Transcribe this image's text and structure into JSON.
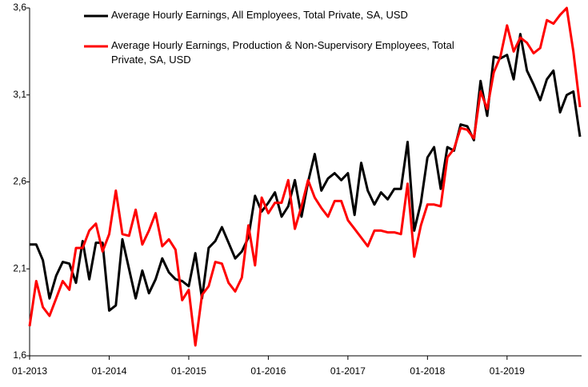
{
  "chart_data": {
    "type": "line",
    "categories": [
      "01-2013",
      null,
      null,
      null,
      null,
      null,
      null,
      null,
      null,
      null,
      null,
      null,
      "01-2014",
      null,
      null,
      null,
      null,
      null,
      null,
      null,
      null,
      null,
      null,
      null,
      "01-2015",
      null,
      null,
      null,
      null,
      null,
      null,
      null,
      null,
      null,
      null,
      null,
      "01-2016",
      null,
      null,
      null,
      null,
      null,
      null,
      null,
      null,
      null,
      null,
      null,
      "01-2017",
      null,
      null,
      null,
      null,
      null,
      null,
      null,
      null,
      null,
      null,
      null,
      "01-2018",
      null,
      null,
      null,
      null,
      null,
      null,
      null,
      null,
      null,
      null,
      null,
      "01-2019",
      null,
      null,
      null,
      null,
      null,
      null,
      null,
      null,
      null,
      null,
      null
    ],
    "series": [
      {
        "name": "Average Hourly Earnings, All Employees, Total Private, SA, USD",
        "color": "#000000",
        "values": [
          2.24,
          2.24,
          2.15,
          1.93,
          2.06,
          2.14,
          2.13,
          2.02,
          2.26,
          2.04,
          2.25,
          2.25,
          1.86,
          1.89,
          2.27,
          2.1,
          1.93,
          2.09,
          1.96,
          2.04,
          2.16,
          2.08,
          2.04,
          2.03,
          2.0,
          2.19,
          1.93,
          2.22,
          2.26,
          2.34,
          2.25,
          2.16,
          2.2,
          2.28,
          2.52,
          2.43,
          2.48,
          2.54,
          2.4,
          2.46,
          2.61,
          2.4,
          2.6,
          2.76,
          2.55,
          2.62,
          2.65,
          2.61,
          2.65,
          2.41,
          2.71,
          2.55,
          2.47,
          2.54,
          2.5,
          2.56,
          2.56,
          2.83,
          2.32,
          2.48,
          2.74,
          2.8,
          2.56,
          2.8,
          2.78,
          2.93,
          2.92,
          2.84,
          3.18,
          2.98,
          3.32,
          3.31,
          3.33,
          3.19,
          3.45,
          3.24,
          3.16,
          3.07,
          3.19,
          3.24,
          3.0,
          3.1,
          3.12,
          2.86
        ]
      },
      {
        "name": "Average Hourly Earnings, Production & Non-Supervisory Employees, Total Private, SA, USD",
        "color": "#ff0000",
        "values": [
          1.77,
          2.03,
          1.88,
          1.83,
          1.93,
          2.03,
          1.98,
          2.22,
          2.22,
          2.32,
          2.36,
          2.2,
          2.3,
          2.55,
          2.3,
          2.29,
          2.44,
          2.24,
          2.32,
          2.42,
          2.23,
          2.27,
          2.21,
          1.92,
          1.98,
          1.66,
          1.95,
          2.0,
          2.14,
          2.13,
          2.02,
          1.97,
          2.05,
          2.35,
          2.12,
          2.51,
          2.42,
          2.48,
          2.48,
          2.61,
          2.33,
          2.46,
          2.61,
          2.51,
          2.45,
          2.4,
          2.49,
          2.49,
          2.38,
          2.33,
          2.28,
          2.23,
          2.32,
          2.32,
          2.31,
          2.31,
          2.3,
          2.59,
          2.17,
          2.35,
          2.47,
          2.47,
          2.46,
          2.74,
          2.79,
          2.91,
          2.9,
          2.85,
          3.12,
          3.02,
          3.23,
          3.32,
          3.5,
          3.35,
          3.43,
          3.4,
          3.34,
          3.37,
          3.53,
          3.51,
          3.56,
          3.6,
          3.35,
          3.03
        ]
      }
    ],
    "ylim": [
      1.6,
      3.6
    ],
    "yticks": [
      {
        "value": 1.6,
        "label": "1,6"
      },
      {
        "value": 2.1,
        "label": "2,1"
      },
      {
        "value": 2.6,
        "label": "2,6"
      },
      {
        "value": 3.1,
        "label": "3,1"
      },
      {
        "value": 3.6,
        "label": "3,6"
      }
    ],
    "grid": false
  }
}
